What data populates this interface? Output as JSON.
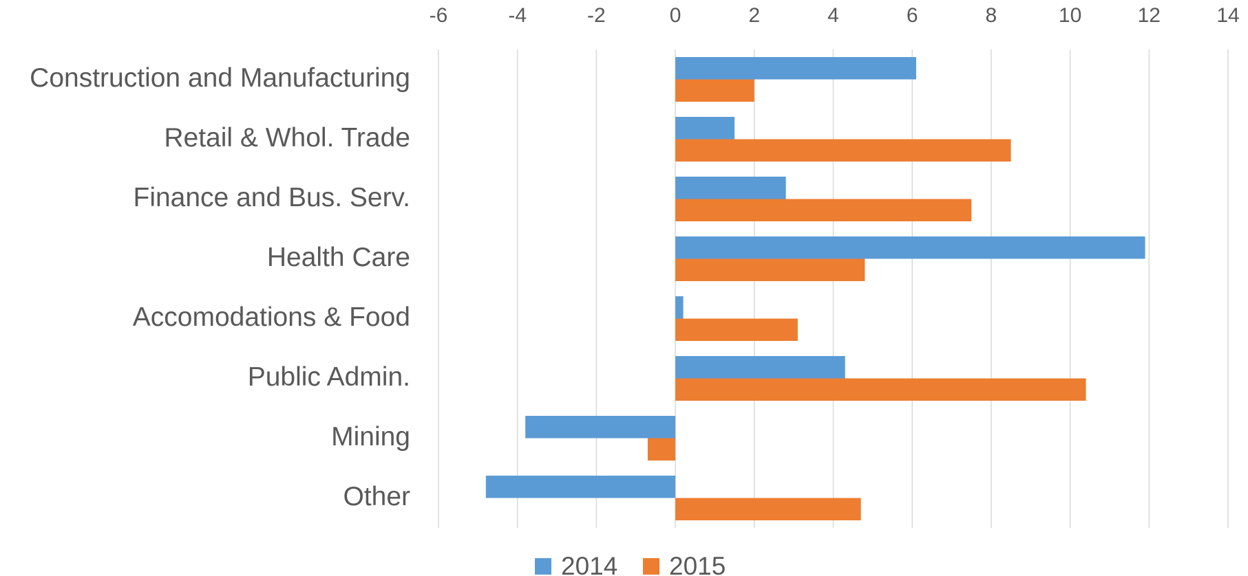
{
  "chart_data": {
    "type": "hbar",
    "categories": [
      "Construction and Manufacturing",
      "Retail & Whol. Trade",
      "Finance and Bus. Serv.",
      "Health Care",
      "Accomodations & Food",
      "Public Admin.",
      "Mining",
      "Other"
    ],
    "series": [
      {
        "name": "2014",
        "color": "#5b9bd5",
        "values": [
          6.1,
          1.5,
          2.8,
          11.9,
          0.2,
          4.3,
          -3.8,
          -4.8
        ]
      },
      {
        "name": "2015",
        "color": "#ed7d31",
        "values": [
          2.0,
          8.5,
          7.5,
          4.8,
          3.1,
          10.4,
          -0.7,
          4.7
        ]
      }
    ],
    "xlim": [
      -6,
      14
    ],
    "xticks": [
      -6,
      -4,
      -2,
      0,
      2,
      4,
      6,
      8,
      10,
      12,
      14
    ],
    "grid": true
  }
}
